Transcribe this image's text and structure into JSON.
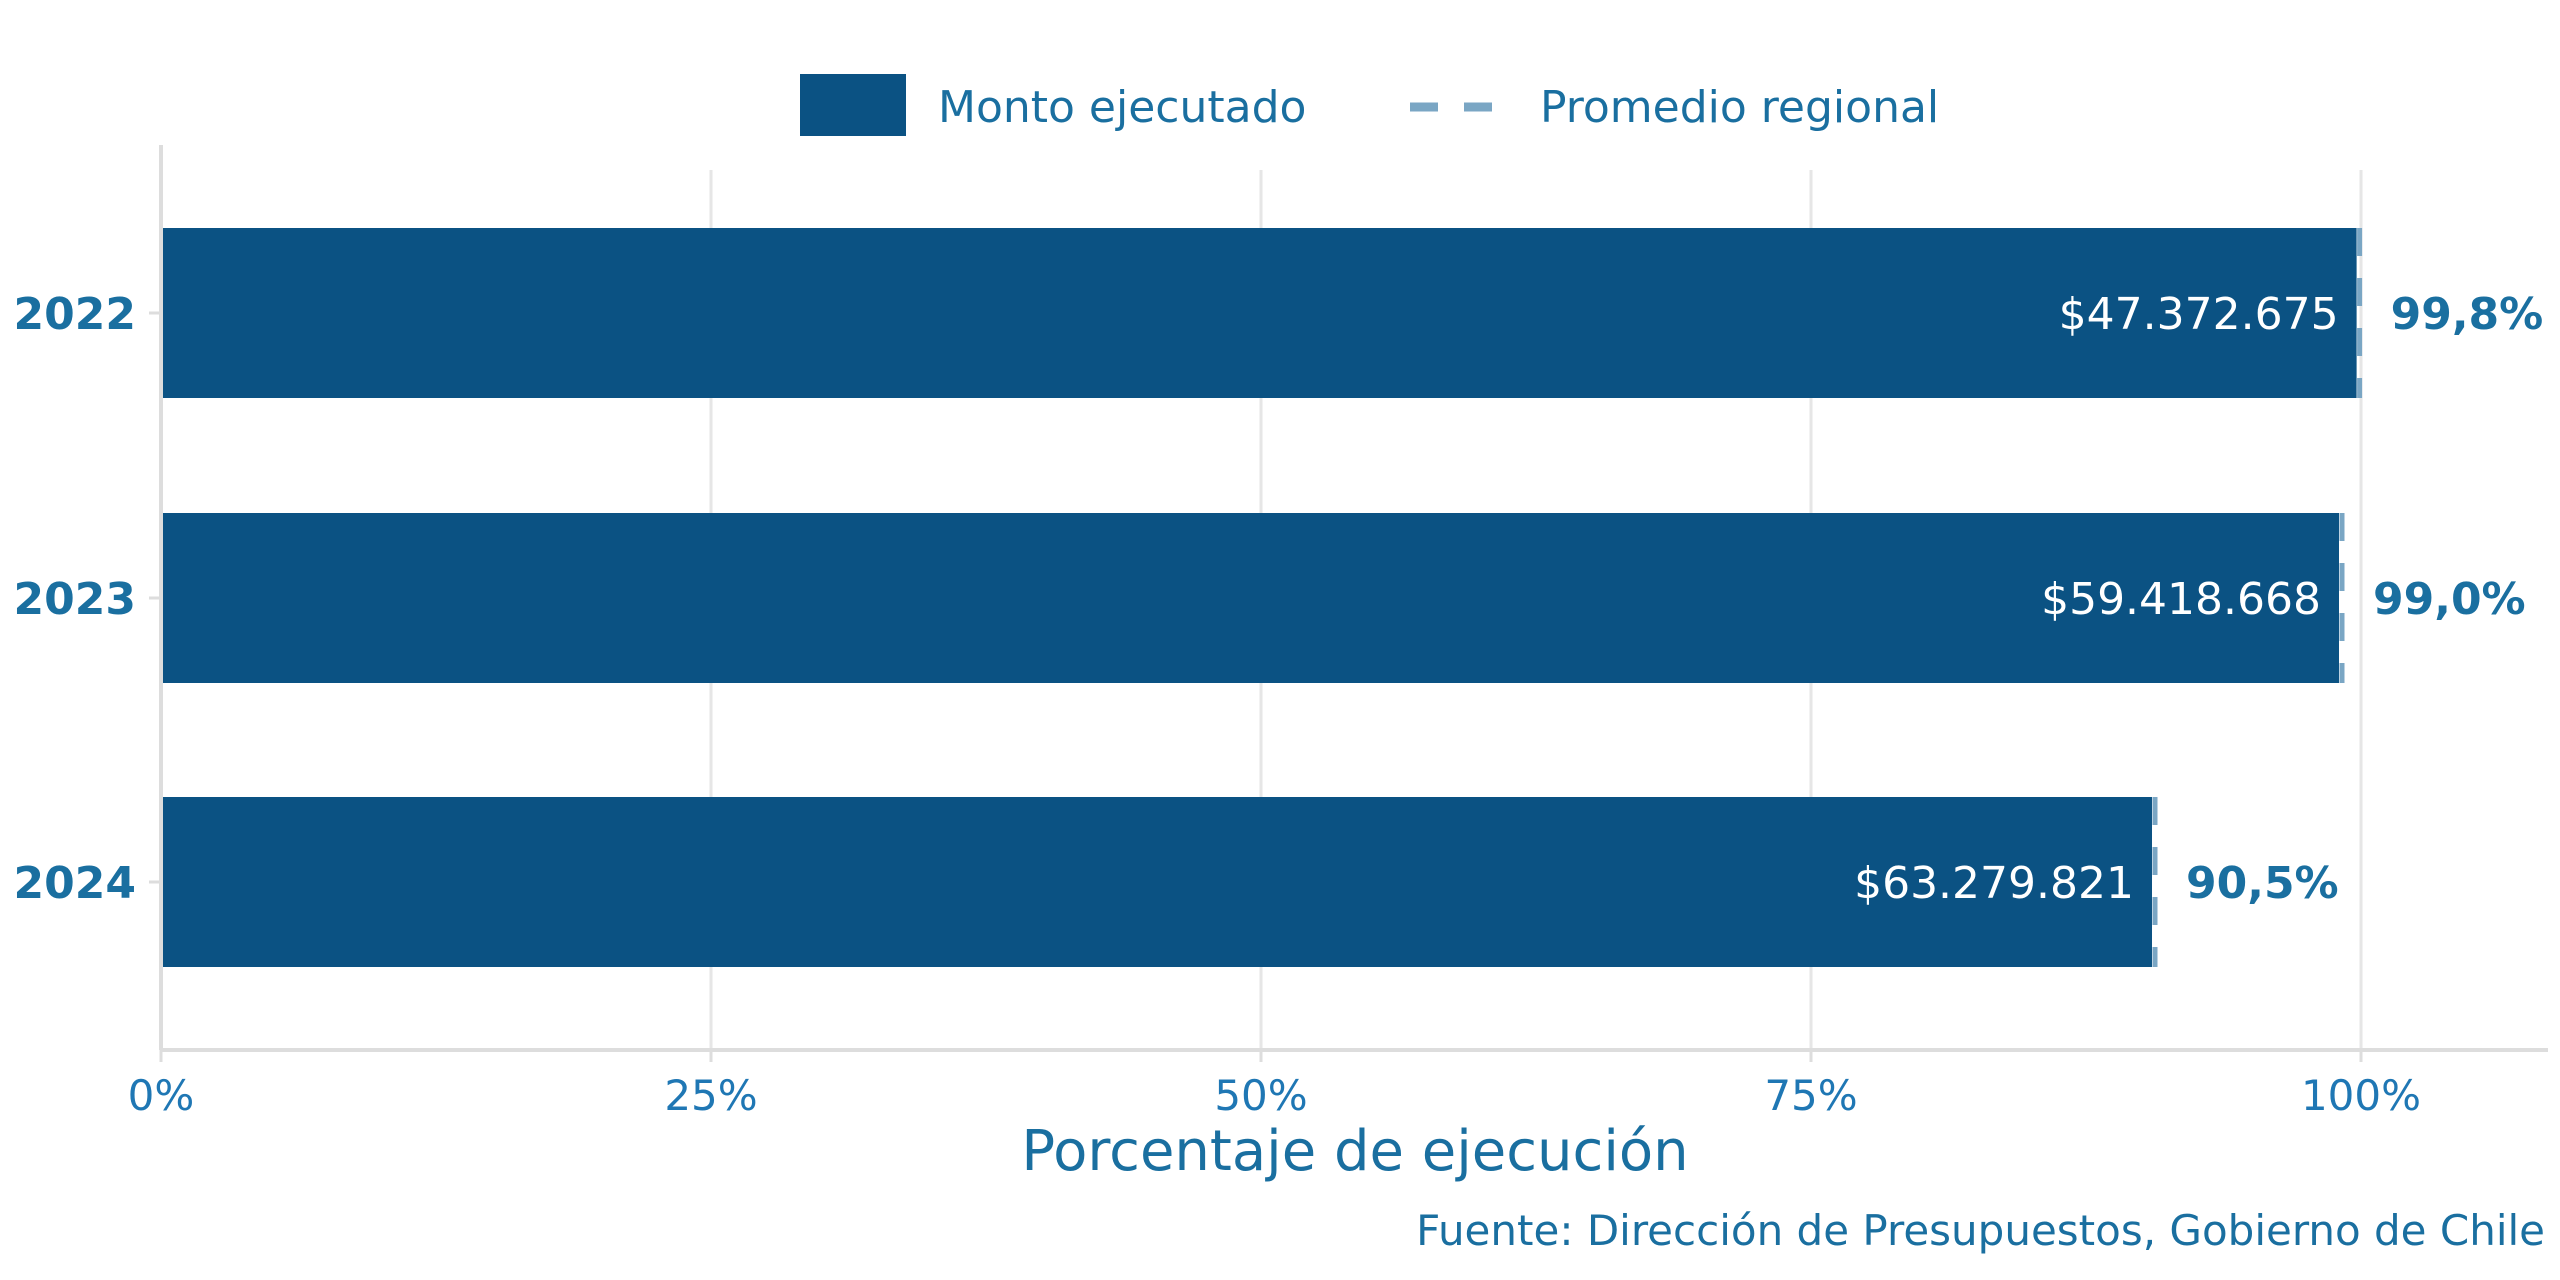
{
  "chart_data": {
    "type": "bar",
    "orientation": "horizontal",
    "categories": [
      "2022",
      "2023",
      "2024"
    ],
    "series": [
      {
        "name": "Monto ejecutado",
        "values": [
          99.8,
          99.0,
          90.5
        ],
        "percent_labels": [
          "99,8%",
          "99,0%",
          "90,5%"
        ],
        "amount_labels": [
          "$47.372.675",
          "$59.418.668",
          "$63.279.821"
        ],
        "color": "#0b5283"
      }
    ],
    "reference": {
      "name": "Promedio regional",
      "values": [
        99.8,
        99.0,
        90.5
      ],
      "color": "#7aa6c4",
      "style": "dashed"
    },
    "xlabel": "Porcentaje de ejecución",
    "xlim": [
      0,
      108.5
    ],
    "xticks": [
      0,
      25,
      50,
      75,
      100
    ],
    "xtick_labels": [
      "0%",
      "25%",
      "50%",
      "75%",
      "100%"
    ],
    "grid": true,
    "legend_position": "top",
    "source": "Fuente: Dirección de Presupuestos, Gobierno de Chile"
  }
}
